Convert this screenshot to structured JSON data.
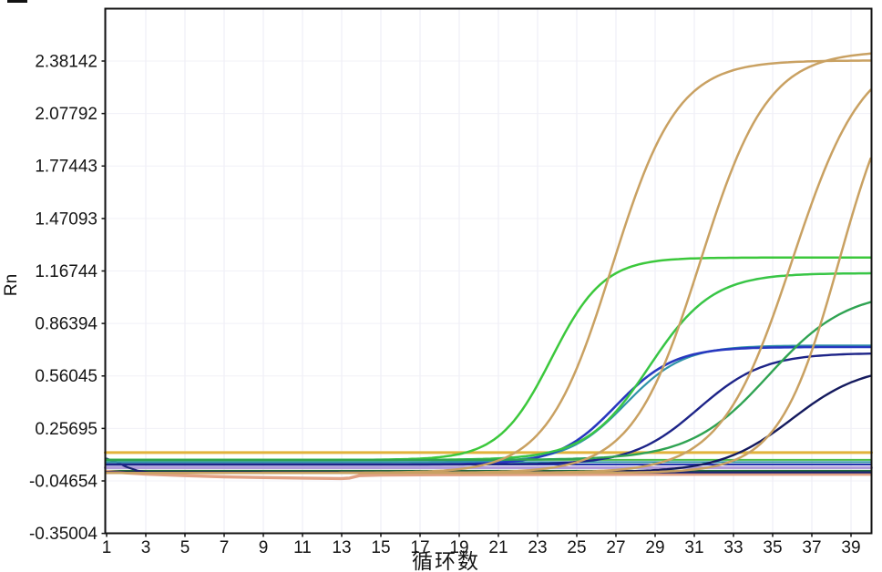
{
  "chart_data": {
    "type": "line",
    "title": "",
    "xlabel": "循环数",
    "ylabel": "Rn",
    "grid": true,
    "legend": false,
    "x_range": [
      1,
      40
    ],
    "y_range": [
      -0.35004,
      2.687
    ],
    "x_ticks": [
      1,
      3,
      5,
      7,
      9,
      11,
      13,
      15,
      17,
      19,
      21,
      23,
      25,
      27,
      29,
      31,
      33,
      35,
      37,
      39
    ],
    "y_ticks": [
      2.38142,
      2.07792,
      1.77443,
      1.47093,
      1.16744,
      0.86394,
      0.56045,
      0.25695,
      -0.04654,
      -0.35004
    ],
    "threshold": {
      "name": "threshold-line",
      "value": 0.117,
      "color": "#E2B33C",
      "width": 3
    },
    "flat_lines": [
      {
        "name": "baseline-green",
        "value": 0.075,
        "color": "#4CBB4C",
        "width": 2
      },
      {
        "name": "baseline-teal",
        "value": 0.062,
        "color": "#2F93A8",
        "width": 2
      },
      {
        "name": "baseline-navy",
        "value": 0.048,
        "color": "#2534AE",
        "width": 2
      },
      {
        "name": "baseline-lavender",
        "value": 0.03,
        "color": "#B29BDA",
        "width": 3
      },
      {
        "name": "baseline-dark-green",
        "value": 0.012,
        "color": "#23683A",
        "width": 2
      }
    ],
    "sigmoid_curves": [
      {
        "name": "amp-teal-1",
        "color": "#2F93A8",
        "width": 2.2,
        "baseline": 0.062,
        "amplitude": 0.675,
        "midpoint": 27.5,
        "slope": 0.68
      },
      {
        "name": "amp-blue-1",
        "color": "#2838C0",
        "width": 2.6,
        "baseline": 0.048,
        "amplitude": 0.68,
        "midpoint": 27.0,
        "slope": 0.68
      },
      {
        "name": "amp-blue-2",
        "color": "#1D2488",
        "width": 2.4,
        "baseline": 0.048,
        "amplitude": 0.645,
        "midpoint": 31.2,
        "slope": 0.6
      },
      {
        "name": "amp-blue-3",
        "color": "#141A5E",
        "width": 2.4,
        "baseline": 0.003,
        "amplitude": 0.62,
        "midpoint": 36.0,
        "slope": 0.55
      },
      {
        "name": "amp-green-1",
        "color": "#3CC83C",
        "width": 2.5,
        "baseline": 0.075,
        "amplitude": 1.17,
        "midpoint": 23.7,
        "slope": 0.75
      },
      {
        "name": "amp-green-2",
        "color": "#38C546",
        "width": 2.5,
        "baseline": 0.075,
        "amplitude": 1.08,
        "midpoint": 28.7,
        "slope": 0.62
      },
      {
        "name": "amp-green-3",
        "color": "#2FA352",
        "width": 2.4,
        "baseline": 0.075,
        "amplitude": 0.98,
        "midpoint": 34.8,
        "slope": 0.5
      },
      {
        "name": "amp-orange-1",
        "color": "#C9A162",
        "width": 2.5,
        "baseline": 0.0,
        "amplitude": 2.385,
        "midpoint": 26.8,
        "slope": 0.6
      },
      {
        "name": "amp-orange-2",
        "color": "#C9A162",
        "width": 2.5,
        "baseline": 0.0,
        "amplitude": 2.44,
        "midpoint": 31.3,
        "slope": 0.58
      },
      {
        "name": "amp-orange-3",
        "color": "#C9A162",
        "width": 2.5,
        "baseline": 0.0,
        "amplitude": 2.46,
        "midpoint": 36.0,
        "slope": 0.55
      },
      {
        "name": "amp-orange-4",
        "color": "#C9A162",
        "width": 2.5,
        "baseline": 0.0,
        "amplitude": 2.46,
        "midpoint": 38.4,
        "slope": 0.65
      }
    ],
    "point_curves": [
      {
        "name": "baseline-salmon-dip",
        "color": "#E2A184",
        "width": 3.4,
        "points": [
          [
            1,
            0.008
          ],
          [
            2,
            0.0
          ],
          [
            3,
            -0.007
          ],
          [
            5,
            -0.016
          ],
          [
            7,
            -0.023
          ],
          [
            9,
            -0.027
          ],
          [
            11,
            -0.03
          ],
          [
            13,
            -0.033
          ],
          [
            13.4,
            -0.03
          ],
          [
            13.9,
            -0.016
          ],
          [
            15,
            -0.013
          ],
          [
            18,
            -0.011
          ],
          [
            25,
            -0.009
          ],
          [
            32,
            -0.008
          ],
          [
            40,
            -0.008
          ]
        ]
      },
      {
        "name": "baseline-navy-transient",
        "color": "#1B2370",
        "width": 2.2,
        "points": [
          [
            1,
            0.082
          ],
          [
            1.5,
            0.062
          ],
          [
            2,
            0.035
          ],
          [
            2.6,
            0.012
          ],
          [
            3.2,
            0.002
          ],
          [
            4,
            0.0
          ],
          [
            6,
            0.002
          ],
          [
            12,
            0.003
          ],
          [
            25,
            0.003
          ],
          [
            40,
            0.003
          ]
        ]
      }
    ]
  }
}
